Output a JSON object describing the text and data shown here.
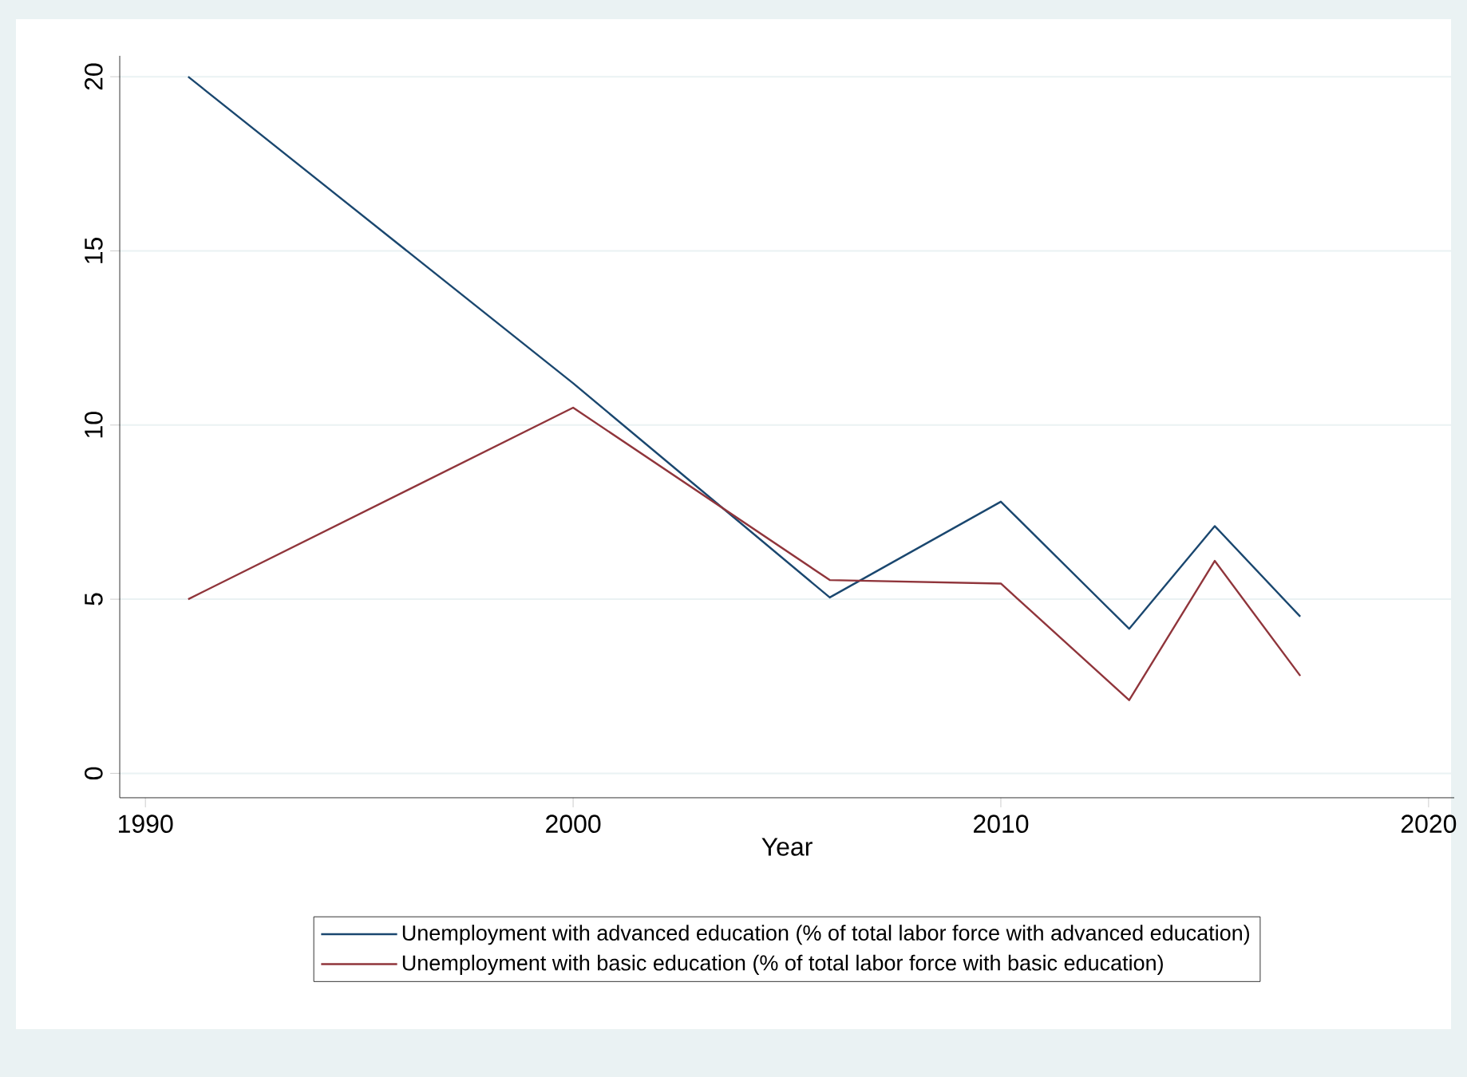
{
  "chart_data": {
    "type": "line",
    "xlabel": "Year",
    "x": [
      1991,
      2000,
      2006,
      2010,
      2013,
      2015,
      2017
    ],
    "series": [
      {
        "name": "Unemployment with advanced education (% of total labor force with advanced education)",
        "color": "#1a476f",
        "values": [
          20,
          11.2,
          5.05,
          7.8,
          4.15,
          7.1,
          4.5
        ]
      },
      {
        "name": "Unemployment with basic education (% of total labor force with basic education)",
        "color": "#90353b",
        "values": [
          5,
          10.5,
          5.55,
          5.45,
          2.1,
          6.1,
          2.8
        ]
      }
    ],
    "xlim": [
      1989.4,
      2020.6
    ],
    "ylim": [
      -0.7,
      20.6
    ],
    "xticks": [
      1990,
      2000,
      2010,
      2020
    ],
    "yticks": [
      0,
      5,
      10,
      15,
      20
    ],
    "grid": "y",
    "legend": "bottom"
  }
}
